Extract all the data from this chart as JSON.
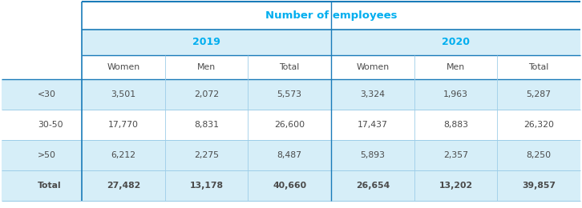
{
  "title": "Number of employees",
  "title_color": "#00AEEF",
  "years": [
    "2019",
    "2020"
  ],
  "year_color": "#00AEEF",
  "sub_headers": [
    "Women",
    "Men",
    "Total",
    "Women",
    "Men",
    "Total"
  ],
  "row_labels": [
    "<30",
    "30-50",
    ">50",
    "Total"
  ],
  "row_label_bold": [
    false,
    false,
    false,
    true
  ],
  "data": [
    [
      "3,501",
      "2,072",
      "5,573",
      "3,324",
      "1,963",
      "5,287"
    ],
    [
      "17,770",
      "8,831",
      "26,600",
      "17,437",
      "8,883",
      "26,320"
    ],
    [
      "6,212",
      "2,275",
      "8,487",
      "5,893",
      "2,357",
      "8,250"
    ],
    [
      "27,482",
      "13,178",
      "40,660",
      "26,654",
      "13,202",
      "39,857"
    ]
  ],
  "data_bold": [
    false,
    false,
    false,
    true
  ],
  "bg_light": "#D6EEF8",
  "bg_white": "#FFFFFF",
  "border_dark": "#1A7BB9",
  "border_light": "#9DCDE8",
  "text_color": "#4A4A4A",
  "total_row_bg": "#C8E6F4"
}
